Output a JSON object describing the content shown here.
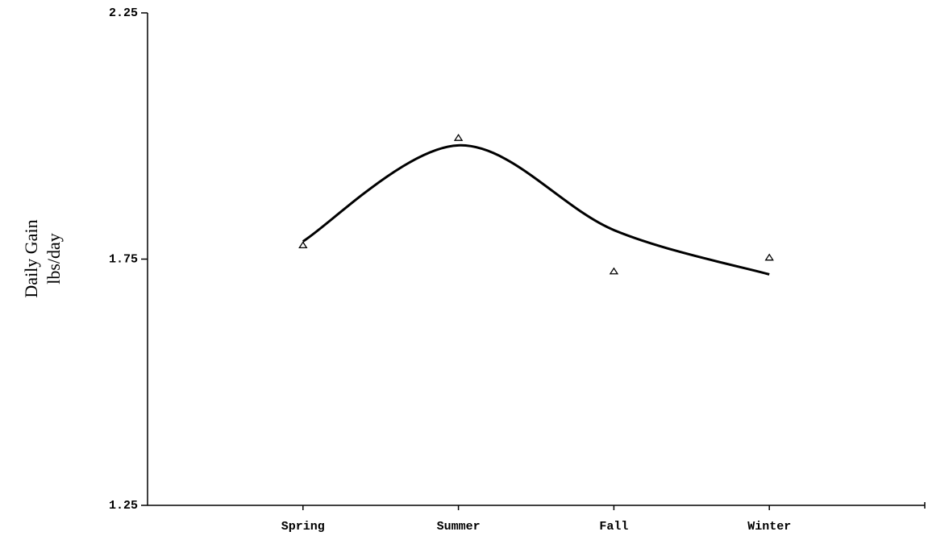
{
  "chart_data": {
    "type": "line",
    "ylabel": [
      "Daily Gain",
      "lbs/day"
    ],
    "categories": [
      "Spring",
      "Summer",
      "Fall",
      "Winter"
    ],
    "series": [
      {
        "values": [
          1.778,
          1.996,
          1.725,
          1.753
        ],
        "marker": "triangle",
        "color": "#000000"
      },
      {
        "values": [
          1.786,
          1.981,
          1.809,
          1.719
        ],
        "smooth": true,
        "color": "#000000"
      }
    ],
    "ylim": [
      1.25,
      2.25
    ],
    "yticks": [
      1.25,
      1.75,
      2.25
    ],
    "grid": false
  }
}
